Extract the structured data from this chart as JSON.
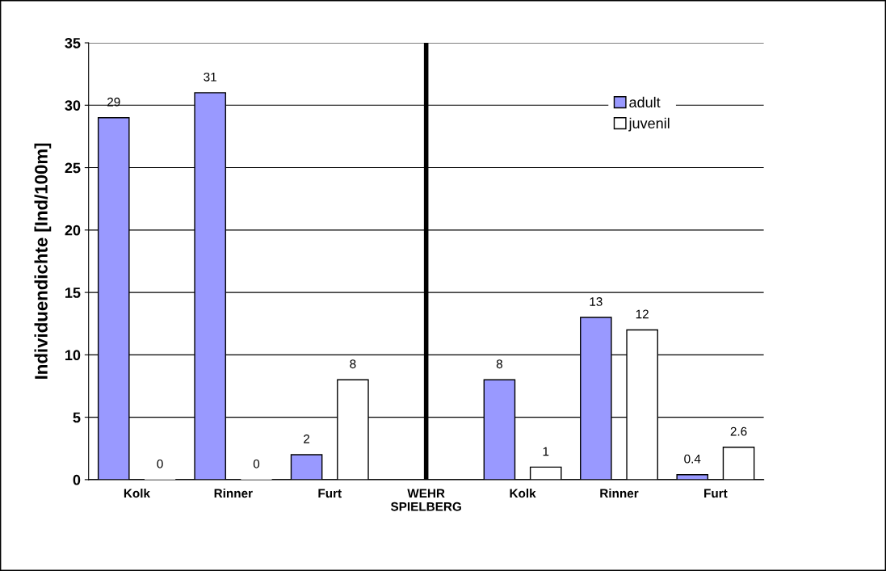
{
  "chart_data": {
    "type": "bar",
    "ylabel": "Individuendichte [Ind/100m]",
    "categories": [
      "Kolk",
      "Rinner",
      "Furt",
      "WEHR\nSPIELBERG",
      "Kolk",
      "Rinner",
      "Furt"
    ],
    "series": [
      {
        "name": "adult",
        "color": "#9999ff",
        "values": [
          29,
          31,
          2,
          null,
          8,
          13,
          0.4
        ]
      },
      {
        "name": "juvenil",
        "color": "#ffffff",
        "values": [
          0,
          0,
          8,
          null,
          1,
          12,
          2.6
        ]
      }
    ],
    "ylim": [
      0,
      35
    ],
    "yticks": [
      0,
      5,
      10,
      15,
      20,
      25,
      30,
      35
    ],
    "ref_lines": [
      {
        "axis": "x",
        "value": "WEHR\nSPIELBERG",
        "color": "#000000",
        "line_style": "solid"
      }
    ],
    "data_labels": true,
    "grid": "y",
    "legend": "top right"
  }
}
